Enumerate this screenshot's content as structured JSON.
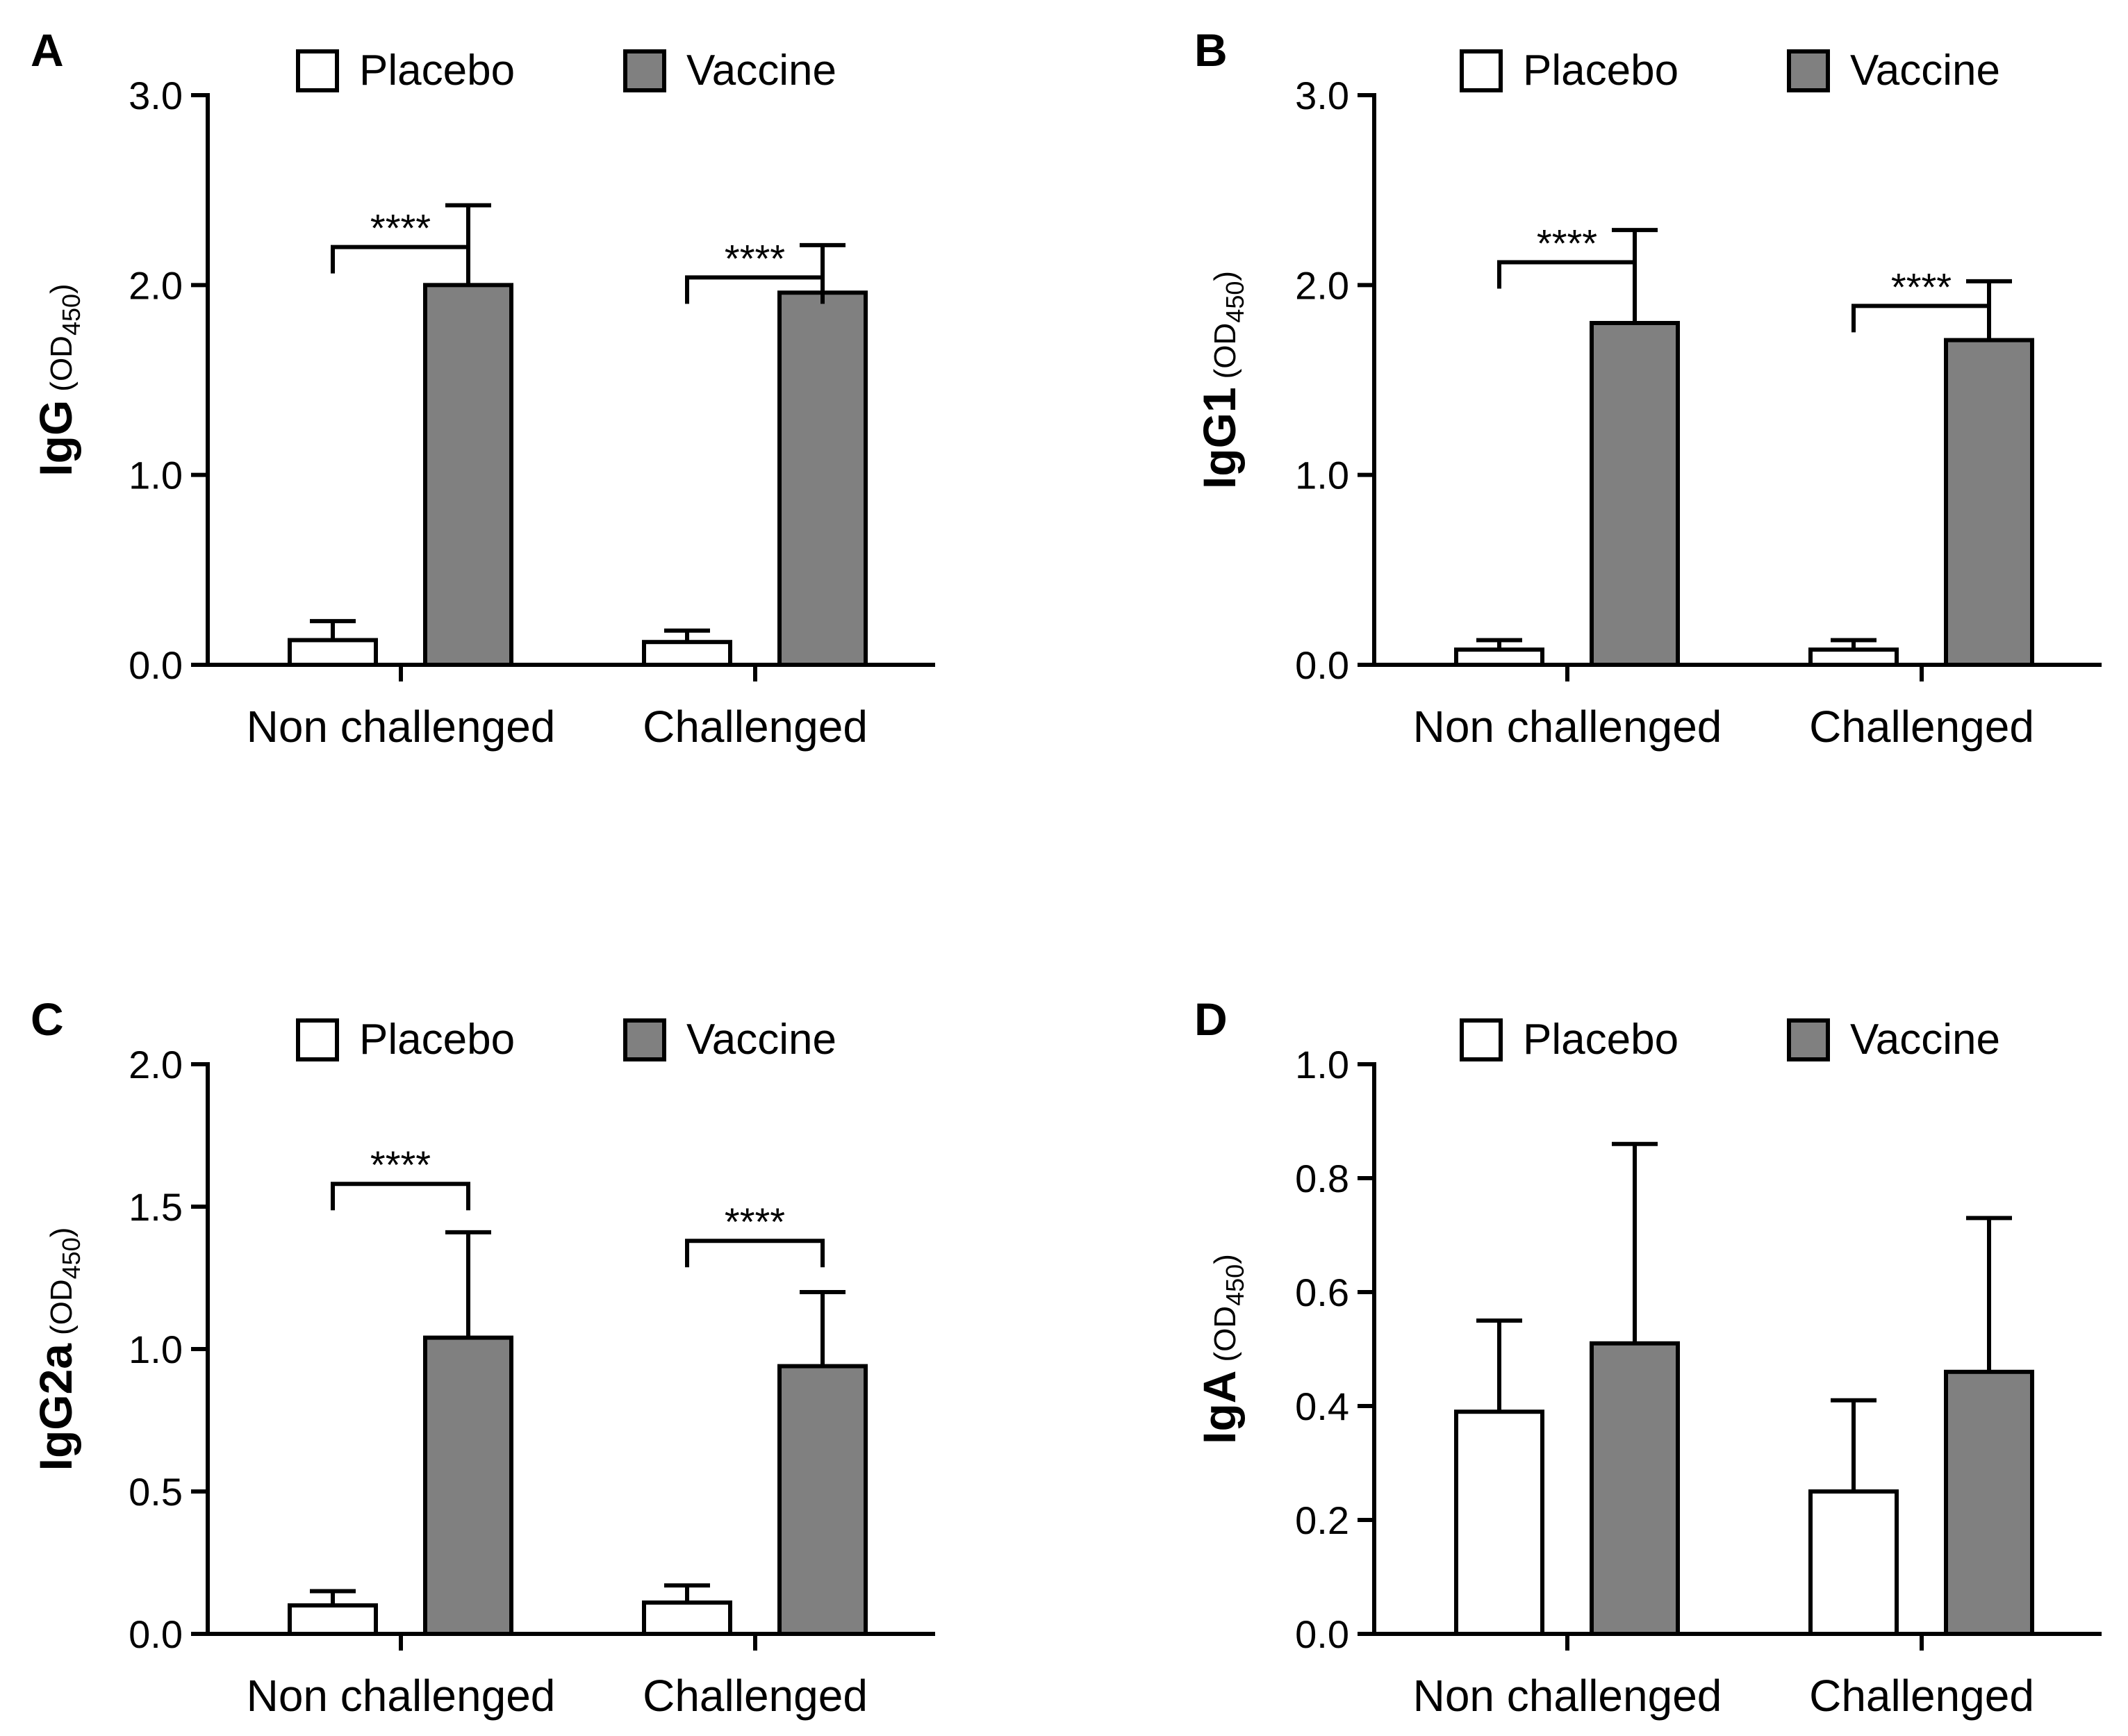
{
  "legend": {
    "placebo": "Placebo",
    "vaccine": "Vaccine"
  },
  "colors": {
    "placebo": "#ffffff",
    "vaccine": "#808080",
    "stroke": "#000000"
  },
  "chart_data": [
    {
      "panel": "A",
      "type": "bar",
      "ylabel": "IgG",
      "ylabel_unit": "(OD",
      "ylabel_sub": "450",
      "ylabel_close": ")",
      "categories": [
        "Non challenged",
        "Challenged"
      ],
      "ylim": [
        0,
        3.0
      ],
      "yticks": [
        0.0,
        1.0,
        2.0,
        3.0
      ],
      "ytick_labels": [
        "0.0",
        "1.0",
        "2.0",
        "3.0"
      ],
      "series": [
        {
          "name": "Placebo",
          "values": [
            0.13,
            0.12
          ],
          "errors": [
            0.1,
            0.06
          ]
        },
        {
          "name": "Vaccine",
          "values": [
            2.0,
            1.96
          ],
          "errors": [
            0.42,
            0.25
          ]
        }
      ],
      "significance": [
        "****",
        "****"
      ],
      "sig_levels": [
        2.2,
        2.04
      ]
    },
    {
      "panel": "B",
      "type": "bar",
      "ylabel": "IgG1",
      "ylabel_unit": "(OD",
      "ylabel_sub": "450",
      "ylabel_close": ")",
      "categories": [
        "Non challenged",
        "Challenged"
      ],
      "ylim": [
        0,
        3.0
      ],
      "yticks": [
        0.0,
        1.0,
        2.0,
        3.0
      ],
      "ytick_labels": [
        "0.0",
        "1.0",
        "2.0",
        "3.0"
      ],
      "series": [
        {
          "name": "Placebo",
          "values": [
            0.08,
            0.08
          ],
          "errors": [
            0.05,
            0.05
          ]
        },
        {
          "name": "Vaccine",
          "values": [
            1.8,
            1.71
          ],
          "errors": [
            0.49,
            0.31
          ]
        }
      ],
      "significance": [
        "****",
        "****"
      ],
      "sig_levels": [
        2.12,
        1.89
      ]
    },
    {
      "panel": "C",
      "type": "bar",
      "ylabel": "IgG2a",
      "ylabel_unit": "(OD",
      "ylabel_sub": "450",
      "ylabel_close": ")",
      "categories": [
        "Non challenged",
        "Challenged"
      ],
      "ylim": [
        0,
        2.0
      ],
      "yticks": [
        0.0,
        0.5,
        1.0,
        1.5,
        2.0
      ],
      "ytick_labels": [
        "0.0",
        "0.5",
        "1.0",
        "1.5",
        "2.0"
      ],
      "series": [
        {
          "name": "Placebo",
          "values": [
            0.1,
            0.11
          ],
          "errors": [
            0.05,
            0.06
          ]
        },
        {
          "name": "Vaccine",
          "values": [
            1.04,
            0.94
          ],
          "errors": [
            0.37,
            0.26
          ]
        }
      ],
      "significance": [
        "****",
        "****"
      ],
      "sig_levels": [
        1.58,
        1.38
      ]
    },
    {
      "panel": "D",
      "type": "bar",
      "ylabel": "IgA",
      "ylabel_unit": "(OD",
      "ylabel_sub": "450",
      "ylabel_close": ")",
      "categories": [
        "Non challenged",
        "Challenged"
      ],
      "ylim": [
        0,
        1.0
      ],
      "yticks": [
        0.0,
        0.2,
        0.4,
        0.6,
        0.8,
        1.0
      ],
      "ytick_labels": [
        "0.0",
        "0.2",
        "0.4",
        "0.6",
        "0.8",
        "1.0"
      ],
      "series": [
        {
          "name": "Placebo",
          "values": [
            0.39,
            0.25
          ],
          "errors": [
            0.16,
            0.16
          ]
        },
        {
          "name": "Vaccine",
          "values": [
            0.51,
            0.46
          ],
          "errors": [
            0.35,
            0.27
          ]
        }
      ],
      "significance": [],
      "sig_levels": []
    }
  ]
}
